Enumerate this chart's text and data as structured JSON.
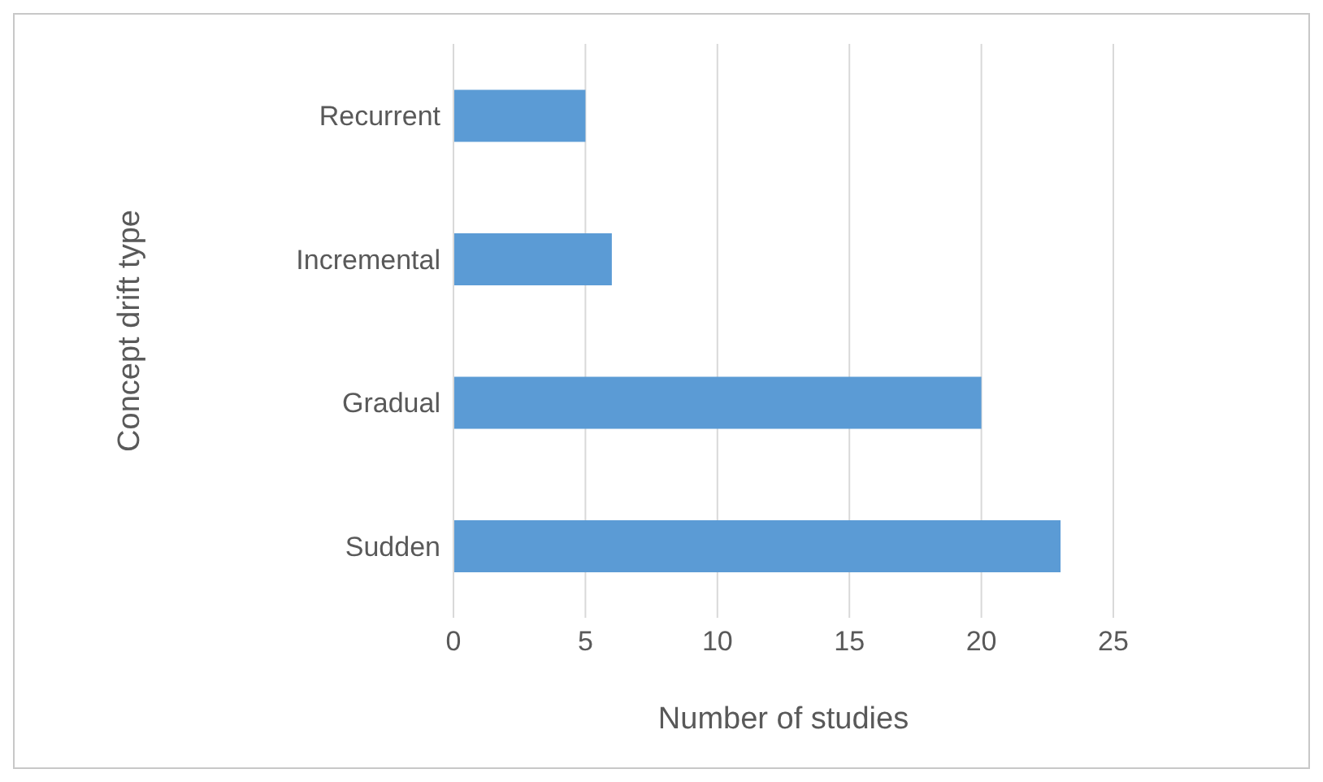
{
  "chart_data": {
    "type": "bar",
    "orientation": "horizontal",
    "categories": [
      "Recurrent",
      "Incremental",
      "Gradual",
      "Sudden"
    ],
    "values": [
      5,
      6,
      20,
      23
    ],
    "color": "#5b9bd5",
    "xlabel": "Number of studies",
    "ylabel": "Concept drift type",
    "xlim": [
      0,
      25
    ],
    "xticks": [
      0,
      5,
      10,
      15,
      20,
      25
    ],
    "grid": "x",
    "legend": false
  }
}
